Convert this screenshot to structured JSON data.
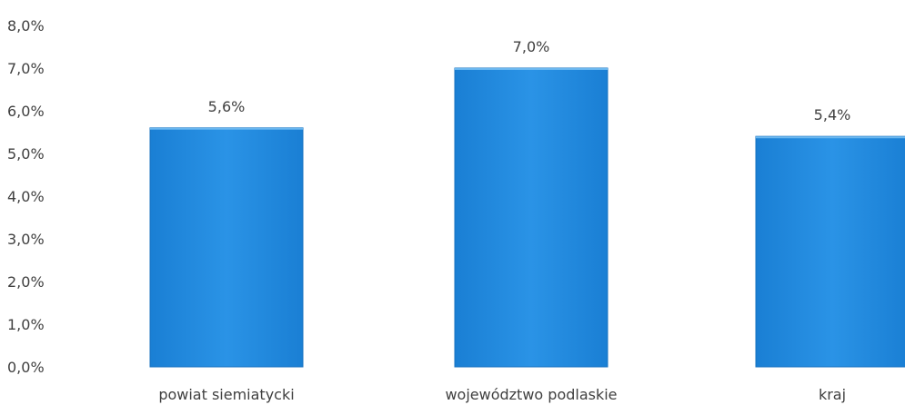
{
  "chart_data": {
    "type": "bar",
    "categories": [
      "powiat siemiatycki",
      "województwo podlaskie",
      "kraj"
    ],
    "values": [
      5.6,
      7.0,
      5.4
    ],
    "data_labels": [
      "5,6%",
      "7,0%",
      "5,4%"
    ],
    "ylim": [
      0,
      8
    ],
    "yticks": [
      "0,0%",
      "1,0%",
      "2,0%",
      "3,0%",
      "4,0%",
      "5,0%",
      "6,0%",
      "7,0%",
      "8,0%"
    ],
    "bar_color": "#1f88dc",
    "grid": false,
    "legend": "none",
    "title": "",
    "xlabel": "",
    "ylabel": ""
  }
}
